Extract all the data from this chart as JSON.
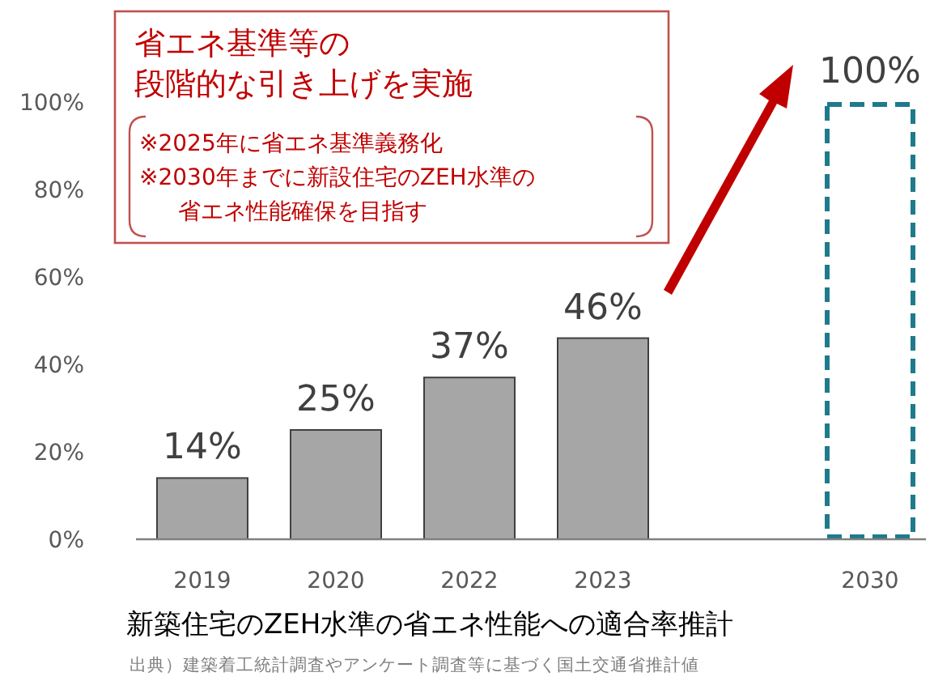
{
  "chart_data": {
    "type": "bar",
    "title": "新築住宅のZEH水準の省エネ性能への適合率推計",
    "categories": [
      "2019",
      "2020",
      "2022",
      "2023",
      null,
      "2030"
    ],
    "series": [
      {
        "color": "#a6a6a6",
        "line_style": "solid",
        "values": [
          14,
          25,
          37,
          46,
          null,
          null
        ],
        "value_labels": [
          "14%",
          "25%",
          "37%",
          "46%",
          null,
          null
        ]
      },
      {
        "color": "#1f7a8c",
        "line_style": "dashed",
        "values": [
          null,
          null,
          null,
          null,
          null,
          100
        ],
        "value_labels": [
          null,
          null,
          null,
          null,
          null,
          "100%"
        ]
      }
    ],
    "ylim": [
      0,
      100
    ],
    "yticks": [
      {
        "value": 0,
        "label": "0%"
      },
      {
        "value": 20,
        "label": "20%"
      },
      {
        "value": 40,
        "label": "40%"
      },
      {
        "value": 60,
        "label": "60%"
      },
      {
        "value": 80,
        "label": "80%"
      },
      {
        "value": 100,
        "label": "100%"
      }
    ],
    "annotations": [
      "省エネ基準等の",
      "段階的な引き上げを実施",
      "※2025年に省エネ基準義務化",
      "※2030年までに新設住宅のZEH水準の",
      "省エネ性能確保を目指す",
      "出典）建築着工統計調査やアンケート調査等に基づく国土交通省推計値"
    ]
  }
}
